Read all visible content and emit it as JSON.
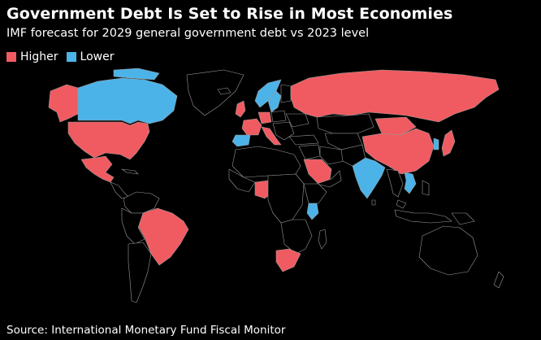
{
  "title": "Government Debt Is Set to Rise in Most Economies",
  "subtitle": "IMF forecast for 2029 general government debt vs 2023 level",
  "legend": [
    {
      "label": "Higher",
      "color": "#f05b61"
    },
    {
      "label": "Lower",
      "color": "#4cb3e8"
    }
  ],
  "colors": {
    "higher": "#f05b61",
    "lower": "#4cb3e8",
    "land": "#000000",
    "border": "#9a9a9a"
  },
  "source": "Source: International Monetary Fund Fiscal Monitor"
}
